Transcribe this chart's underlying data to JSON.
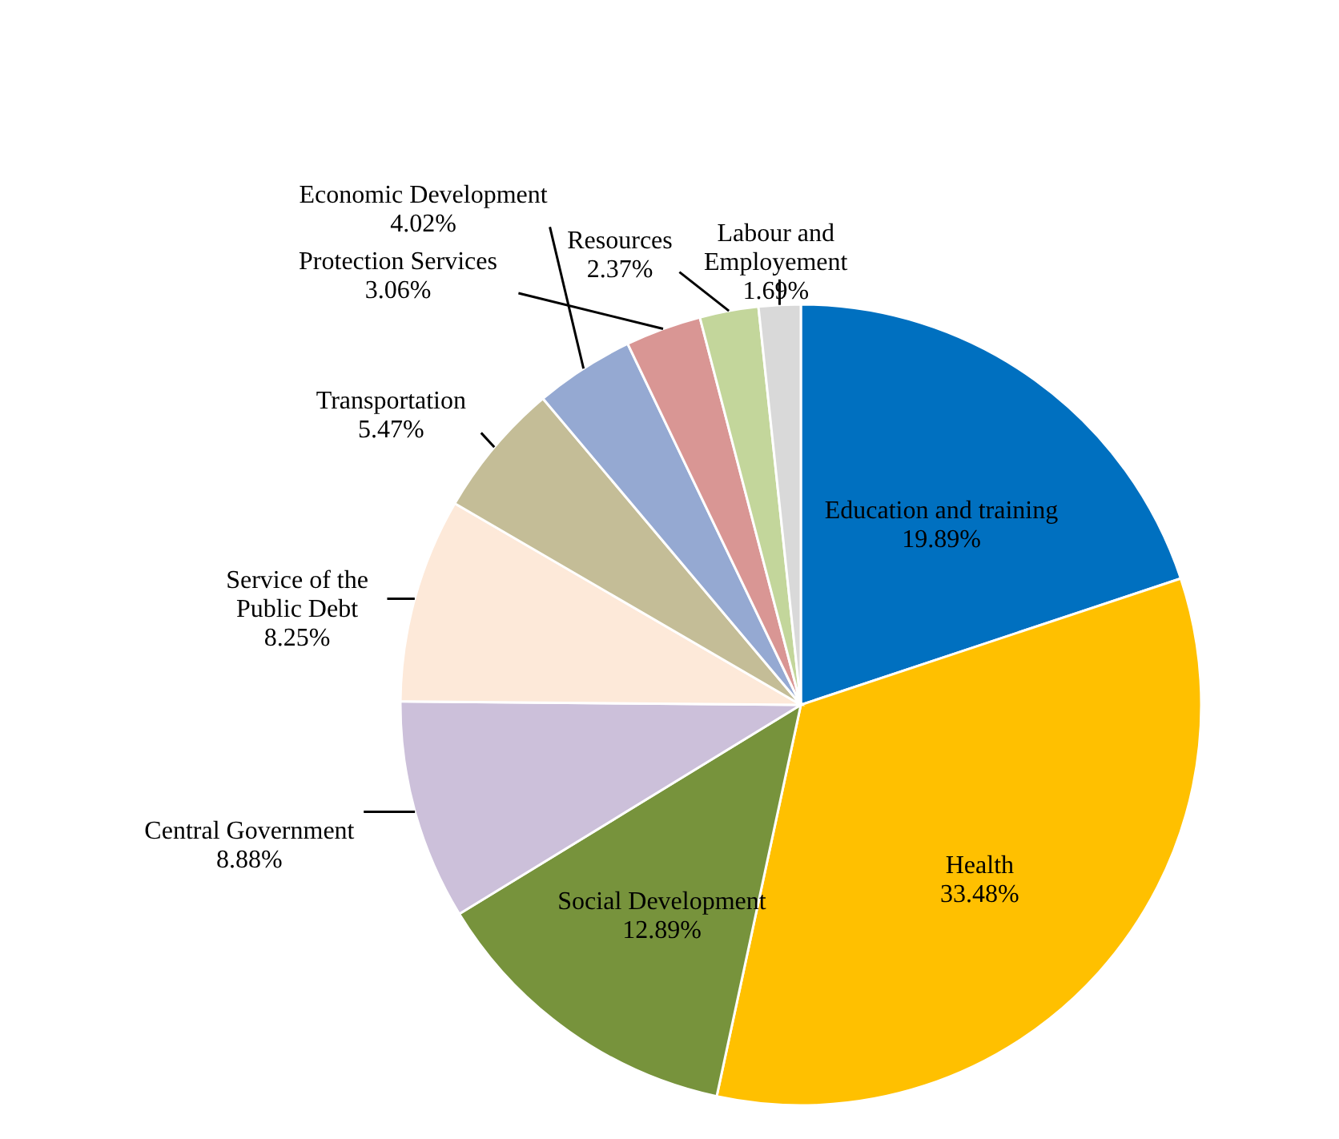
{
  "chart_data": {
    "type": "pie",
    "categories": [
      "Education and training",
      "Health",
      "Social Development",
      "Central Government",
      "Service of the Public Debt",
      "Transportation",
      "Economic Development",
      "Protection Services",
      "Resources",
      "Labour and Employement"
    ],
    "values": [
      19.89,
      33.48,
      12.89,
      8.88,
      8.25,
      5.47,
      4.02,
      3.06,
      2.37,
      1.69
    ],
    "colors": [
      "#0070c0",
      "#ffc000",
      "#77933c",
      "#ccc0da",
      "#fde9d9",
      "#c4bd97",
      "#95a9d2",
      "#d99694",
      "#c3d69b",
      "#d9d9d9"
    ],
    "value_labels": [
      "19.89%",
      "33.48%",
      "12.89%",
      "8.88%",
      "8.25%",
      "5.47%",
      "4.02%",
      "3.06%",
      "2.37%",
      "1.69%"
    ]
  }
}
